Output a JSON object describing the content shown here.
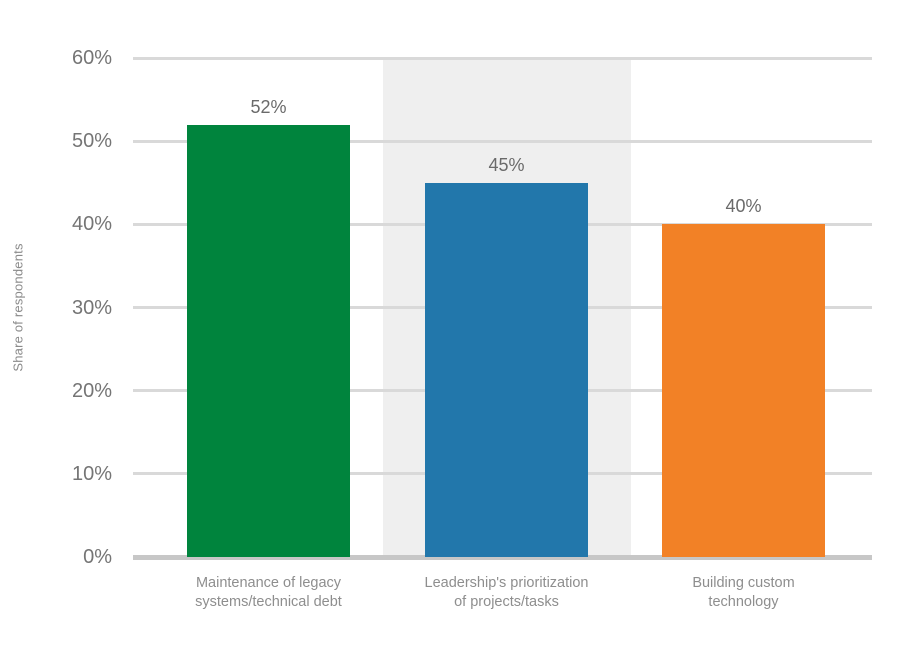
{
  "chart_data": {
    "type": "bar",
    "title": "",
    "xlabel": "",
    "ylabel": "Share of respondents",
    "categories": [
      [
        "Maintenance of legacy",
        "systems/technical debt"
      ],
      [
        "Leadership's prioritization",
        "of projects/tasks"
      ],
      [
        "Building custom",
        "technology"
      ]
    ],
    "values": [
      52,
      45,
      40
    ],
    "value_labels": [
      "52%",
      "45%",
      "40%"
    ],
    "series_colors": [
      "#00843d",
      "#2277ab",
      "#f28126"
    ],
    "highlighted_category_index": 1,
    "highlight_band_color": "#efefef",
    "ylim": [
      0,
      60
    ],
    "ytick_step": 10,
    "ytick_labels": [
      "0%",
      "10%",
      "20%",
      "30%",
      "40%",
      "50%",
      "60%"
    ],
    "grid": true,
    "gridline_color": "#d9d9d9",
    "axis_line_color": "#c7c7c7",
    "legend": false
  }
}
